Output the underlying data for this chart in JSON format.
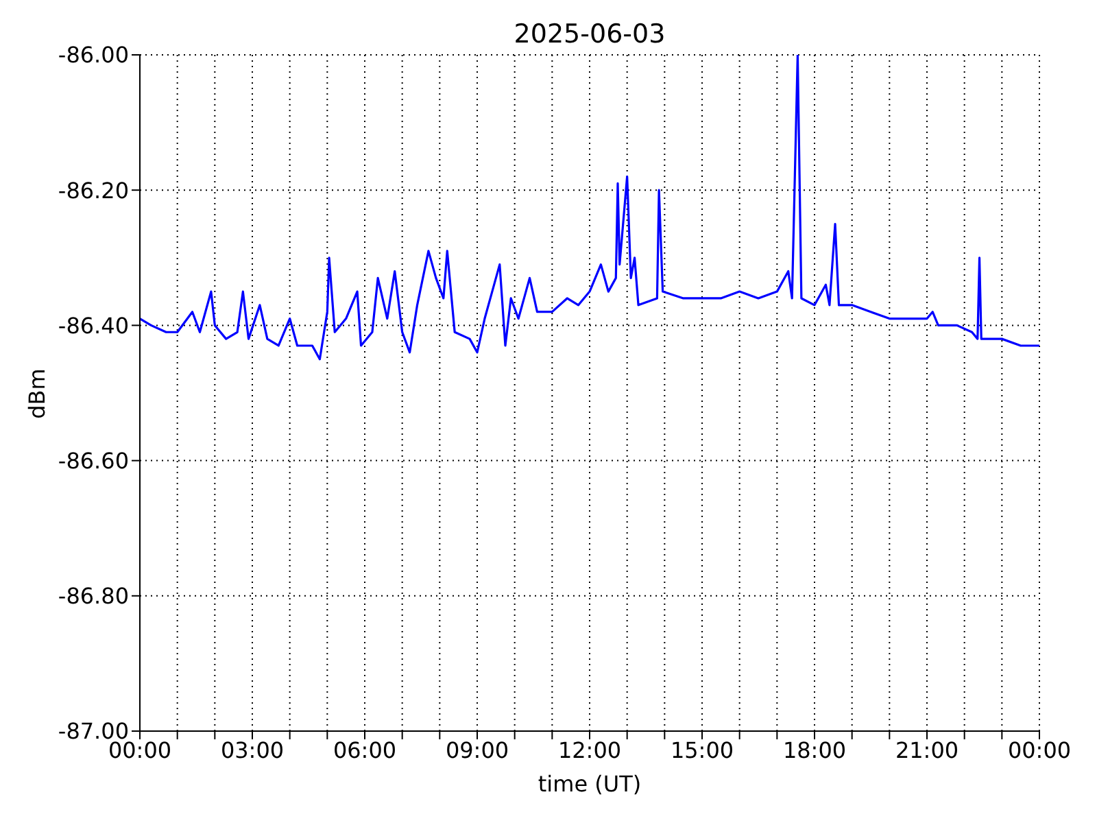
{
  "chart_data": {
    "type": "line",
    "title": "2025-06-03",
    "xlabel": "time (UT)",
    "ylabel": "dBm",
    "x": [
      0,
      0.3,
      0.7,
      1.0,
      1.4,
      1.6,
      1.9,
      2.0,
      2.3,
      2.6,
      2.75,
      2.9,
      3.2,
      3.4,
      3.7,
      4.0,
      4.2,
      4.6,
      4.8,
      5.0,
      5.05,
      5.2,
      5.5,
      5.8,
      5.9,
      6.2,
      6.35,
      6.6,
      6.8,
      7.0,
      7.2,
      7.4,
      7.7,
      7.9,
      8.1,
      8.2,
      8.4,
      8.8,
      9.0,
      9.2,
      9.4,
      9.6,
      9.75,
      9.9,
      10.1,
      10.4,
      10.6,
      11.0,
      11.4,
      11.7,
      12.0,
      12.3,
      12.5,
      12.7,
      12.75,
      12.8,
      13.0,
      13.1,
      13.2,
      13.3,
      13.8,
      13.85,
      13.95,
      14.5,
      15.0,
      15.5,
      16.0,
      16.5,
      17.0,
      17.3,
      17.4,
      17.55,
      17.65,
      18.0,
      18.3,
      18.4,
      18.55,
      18.65,
      19.0,
      19.5,
      20.0,
      20.5,
      21.0,
      21.15,
      21.3,
      21.8,
      22.2,
      22.35,
      22.4,
      22.45,
      23.0,
      23.5,
      24.0
    ],
    "series": [
      {
        "color": "#0000ff",
        "values": [
          -86.39,
          -86.4,
          -86.41,
          -86.41,
          -86.38,
          -86.41,
          -86.35,
          -86.4,
          -86.42,
          -86.41,
          -86.35,
          -86.42,
          -86.37,
          -86.42,
          -86.43,
          -86.39,
          -86.43,
          -86.43,
          -86.45,
          -86.38,
          -86.3,
          -86.41,
          -86.39,
          -86.35,
          -86.43,
          -86.41,
          -86.33,
          -86.39,
          -86.32,
          -86.41,
          -86.44,
          -86.37,
          -86.29,
          -86.33,
          -86.36,
          -86.29,
          -86.41,
          -86.42,
          -86.44,
          -86.39,
          -86.35,
          -86.31,
          -86.43,
          -86.36,
          -86.39,
          -86.33,
          -86.38,
          -86.38,
          -86.36,
          -86.37,
          -86.35,
          -86.31,
          -86.35,
          -86.33,
          -86.19,
          -86.31,
          -86.18,
          -86.33,
          -86.3,
          -86.37,
          -86.36,
          -86.2,
          -86.35,
          -86.36,
          -86.36,
          -86.36,
          -86.35,
          -86.36,
          -86.35,
          -86.32,
          -86.36,
          -86.0,
          -86.36,
          -86.37,
          -86.34,
          -86.37,
          -86.25,
          -86.37,
          -86.37,
          -86.38,
          -86.39,
          -86.39,
          -86.39,
          -86.38,
          -86.4,
          -86.4,
          -86.41,
          -86.42,
          -86.3,
          -86.42,
          -86.42,
          -86.43,
          -86.43
        ]
      }
    ],
    "xlim": [
      0,
      24
    ],
    "xticks": [
      {
        "value": 0,
        "label": "00:00"
      },
      {
        "value": 1,
        "label": null
      },
      {
        "value": 2,
        "label": null
      },
      {
        "value": 3,
        "label": "03:00"
      },
      {
        "value": 4,
        "label": null
      },
      {
        "value": 5,
        "label": null
      },
      {
        "value": 6,
        "label": "06:00"
      },
      {
        "value": 7,
        "label": null
      },
      {
        "value": 8,
        "label": null
      },
      {
        "value": 9,
        "label": "09:00"
      },
      {
        "value": 10,
        "label": null
      },
      {
        "value": 11,
        "label": null
      },
      {
        "value": 12,
        "label": "12:00"
      },
      {
        "value": 13,
        "label": null
      },
      {
        "value": 14,
        "label": null
      },
      {
        "value": 15,
        "label": "15:00"
      },
      {
        "value": 16,
        "label": null
      },
      {
        "value": 17,
        "label": null
      },
      {
        "value": 18,
        "label": "18:00"
      },
      {
        "value": 19,
        "label": null
      },
      {
        "value": 20,
        "label": null
      },
      {
        "value": 21,
        "label": "21:00"
      },
      {
        "value": 22,
        "label": null
      },
      {
        "value": 23,
        "label": null
      },
      {
        "value": 24,
        "label": "00:00"
      }
    ],
    "ylim": [
      -87,
      -86
    ],
    "yticks": [
      {
        "value": -87,
        "label": "-87.00"
      },
      {
        "value": -86.8,
        "label": "-86.80"
      },
      {
        "value": -86.6,
        "label": "-86.60"
      },
      {
        "value": -86.4,
        "label": "-86.40"
      },
      {
        "value": -86.2,
        "label": "-86.20"
      },
      {
        "value": -86,
        "label": "-86.00"
      }
    ],
    "grid": true,
    "marker": "none",
    "line_style": "solid",
    "legend": false
  }
}
